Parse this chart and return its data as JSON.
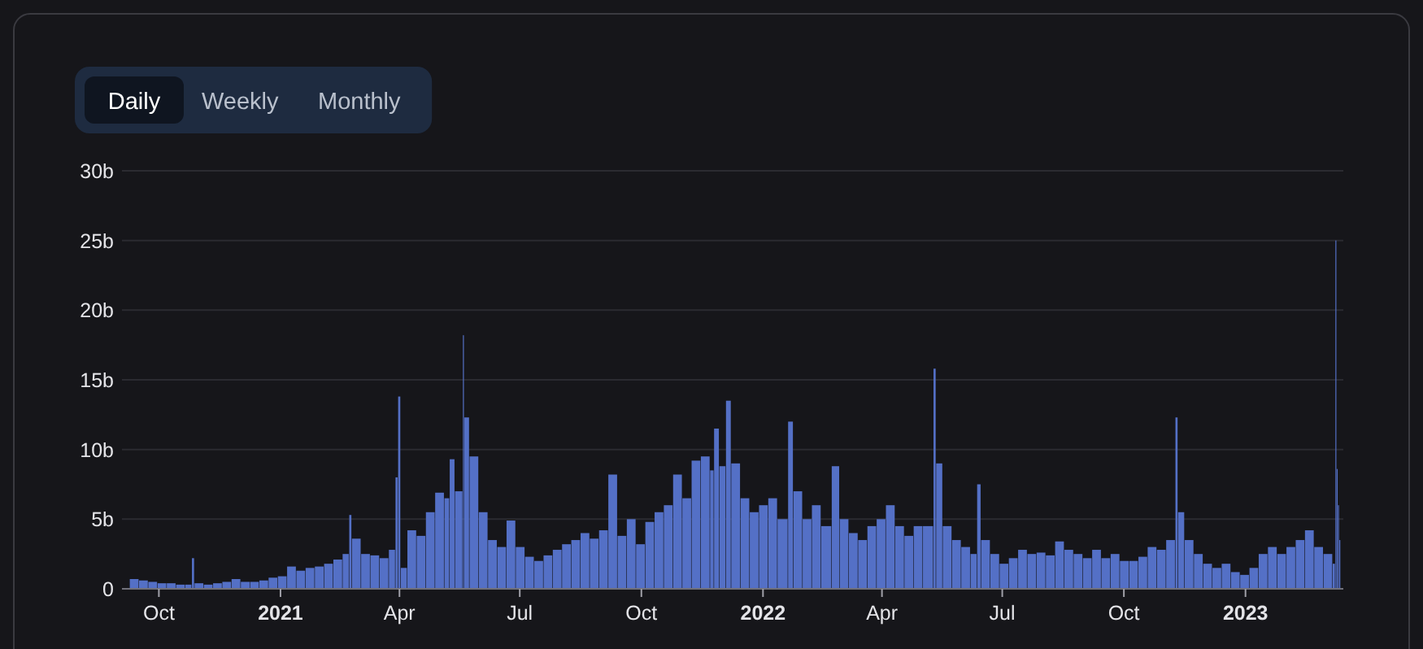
{
  "chart_data": {
    "type": "bar",
    "color": "#5470c6",
    "grid": "y",
    "annotations": [
      "Daily",
      "Weekly",
      "Monthly"
    ],
    "xlim": [
      "2020-09-08",
      "2023-03-16"
    ],
    "xticks": [
      {
        "value": "2020-10-01",
        "label": "Oct"
      },
      {
        "value": "2021-01-01",
        "label": "2021"
      },
      {
        "value": "2021-04-01",
        "label": "Apr"
      },
      {
        "value": "2021-07-01",
        "label": "Jul"
      },
      {
        "value": "2021-10-01",
        "label": "Oct"
      },
      {
        "value": "2022-01-01",
        "label": "2022"
      },
      {
        "value": "2022-04-01",
        "label": "Apr"
      },
      {
        "value": "2022-07-01",
        "label": "Jul"
      },
      {
        "value": "2022-10-01",
        "label": "Oct"
      },
      {
        "value": "2023-01-01",
        "label": "2023"
      }
    ],
    "ylim": [
      0,
      30
    ],
    "yticks": [
      {
        "value": 0,
        "label": "0"
      },
      {
        "value": 5,
        "label": "5b"
      },
      {
        "value": 10,
        "label": "10b"
      },
      {
        "value": 15,
        "label": "15b"
      },
      {
        "value": 20,
        "label": "20b"
      },
      {
        "value": 25,
        "label": "25b"
      },
      {
        "value": 30,
        "label": "30b"
      }
    ],
    "x": [
      "2020-09-09",
      "2020-09-16",
      "2020-09-23",
      "2020-09-30",
      "2020-10-07",
      "2020-10-14",
      "2020-10-21",
      "2020-10-26",
      "2020-10-28",
      "2020-11-04",
      "2020-11-11",
      "2020-11-18",
      "2020-11-25",
      "2020-12-02",
      "2020-12-09",
      "2020-12-16",
      "2020-12-23",
      "2020-12-30",
      "2021-01-06",
      "2021-01-13",
      "2021-01-20",
      "2021-01-27",
      "2021-02-03",
      "2021-02-10",
      "2021-02-17",
      "2021-02-22",
      "2021-02-24",
      "2021-03-03",
      "2021-03-10",
      "2021-03-17",
      "2021-03-24",
      "2021-03-29",
      "2021-03-31",
      "2021-04-02",
      "2021-04-07",
      "2021-04-14",
      "2021-04-21",
      "2021-04-28",
      "2021-05-05",
      "2021-05-09",
      "2021-05-13",
      "2021-05-19",
      "2021-05-20",
      "2021-05-24",
      "2021-05-31",
      "2021-06-07",
      "2021-06-14",
      "2021-06-21",
      "2021-06-28",
      "2021-07-05",
      "2021-07-12",
      "2021-07-19",
      "2021-07-26",
      "2021-08-02",
      "2021-08-09",
      "2021-08-16",
      "2021-08-23",
      "2021-08-30",
      "2021-09-06",
      "2021-09-13",
      "2021-09-20",
      "2021-09-27",
      "2021-10-04",
      "2021-10-11",
      "2021-10-18",
      "2021-10-25",
      "2021-11-01",
      "2021-11-08",
      "2021-11-15",
      "2021-11-22",
      "2021-11-25",
      "2021-11-29",
      "2021-12-04",
      "2021-12-08",
      "2021-12-15",
      "2021-12-22",
      "2021-12-29",
      "2022-01-05",
      "2022-01-12",
      "2022-01-20",
      "2022-01-24",
      "2022-01-31",
      "2022-02-07",
      "2022-02-14",
      "2022-02-22",
      "2022-02-28",
      "2022-03-07",
      "2022-03-14",
      "2022-03-21",
      "2022-03-28",
      "2022-04-04",
      "2022-04-11",
      "2022-04-18",
      "2022-04-25",
      "2022-05-02",
      "2022-05-10",
      "2022-05-12",
      "2022-05-17",
      "2022-05-24",
      "2022-05-31",
      "2022-06-07",
      "2022-06-12",
      "2022-06-15",
      "2022-06-22",
      "2022-06-29",
      "2022-07-06",
      "2022-07-13",
      "2022-07-20",
      "2022-07-27",
      "2022-08-03",
      "2022-08-10",
      "2022-08-17",
      "2022-08-24",
      "2022-08-31",
      "2022-09-07",
      "2022-09-14",
      "2022-09-21",
      "2022-09-28",
      "2022-10-05",
      "2022-10-12",
      "2022-10-19",
      "2022-10-26",
      "2022-11-02",
      "2022-11-09",
      "2022-11-11",
      "2022-11-16",
      "2022-11-23",
      "2022-11-30",
      "2022-12-07",
      "2022-12-14",
      "2022-12-21",
      "2022-12-28",
      "2023-01-04",
      "2023-01-11",
      "2023-01-18",
      "2023-01-25",
      "2023-02-01",
      "2023-02-08",
      "2023-02-15",
      "2023-02-22",
      "2023-03-01",
      "2023-03-08",
      "2023-03-10",
      "2023-03-11",
      "2023-03-12",
      "2023-03-13"
    ],
    "values": [
      0.7,
      0.6,
      0.5,
      0.4,
      0.4,
      0.3,
      0.3,
      2.2,
      0.4,
      0.3,
      0.4,
      0.5,
      0.7,
      0.5,
      0.5,
      0.6,
      0.8,
      0.9,
      1.6,
      1.3,
      1.5,
      1.6,
      1.8,
      2.1,
      2.5,
      5.3,
      3.6,
      2.5,
      2.4,
      2.2,
      2.8,
      8.0,
      13.8,
      1.5,
      4.2,
      3.8,
      5.5,
      6.9,
      6.5,
      9.3,
      7.0,
      18.2,
      12.3,
      9.5,
      5.5,
      3.5,
      3.0,
      4.9,
      3.0,
      2.3,
      2.0,
      2.4,
      2.8,
      3.2,
      3.5,
      4.0,
      3.6,
      4.2,
      8.2,
      3.8,
      5.0,
      3.2,
      4.8,
      5.5,
      6.0,
      8.2,
      6.5,
      9.2,
      9.5,
      8.5,
      11.5,
      8.8,
      13.5,
      9.0,
      6.5,
      5.5,
      6.0,
      6.5,
      5.0,
      12.0,
      7.0,
      5.0,
      6.0,
      4.5,
      8.8,
      5.0,
      4.0,
      3.5,
      4.5,
      5.0,
      6.0,
      4.5,
      3.8,
      4.5,
      4.5,
      15.8,
      9.0,
      4.5,
      3.5,
      3.0,
      2.5,
      7.5,
      3.5,
      2.5,
      1.8,
      2.2,
      2.8,
      2.5,
      2.6,
      2.4,
      3.4,
      2.8,
      2.5,
      2.2,
      2.8,
      2.2,
      2.5,
      2.0,
      2.0,
      2.3,
      3.0,
      2.8,
      3.5,
      12.3,
      5.5,
      3.5,
      2.5,
      1.8,
      1.5,
      1.8,
      1.2,
      1.0,
      1.5,
      2.5,
      3.0,
      2.5,
      3.0,
      3.5,
      4.2,
      3.0,
      2.5,
      1.8,
      25.0,
      8.6,
      6.0,
      3.5
    ]
  }
}
